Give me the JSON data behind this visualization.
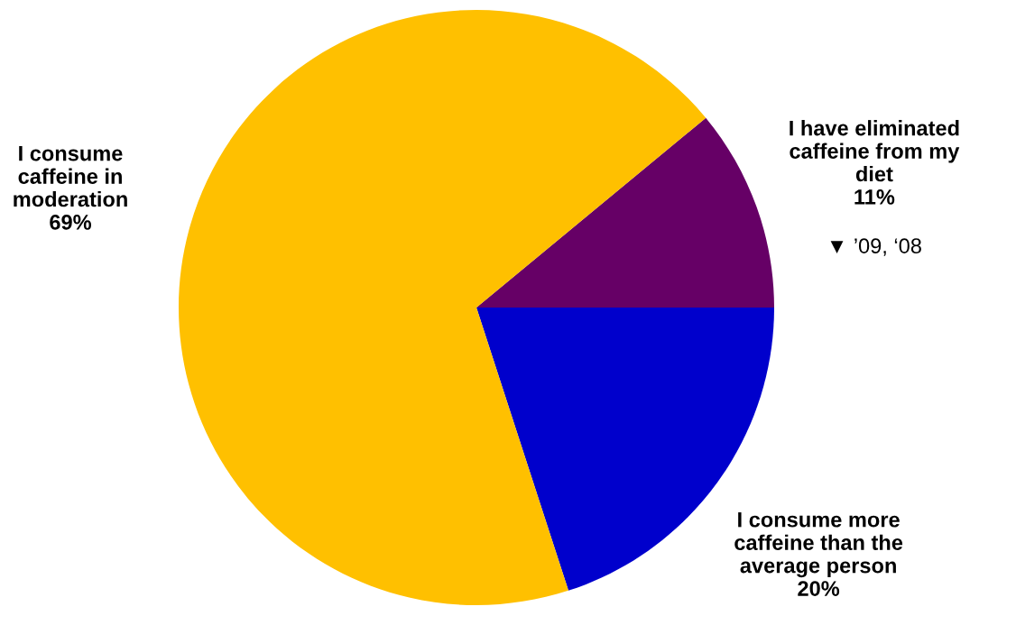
{
  "chart_data": {
    "type": "pie",
    "categories": [
      "I have eliminated\ncaffeine from my\ndiet",
      "I consume more\ncaffeine than the\naverage person",
      "I consume\ncaffeine in\nmoderation"
    ],
    "values": [
      11,
      20,
      69
    ],
    "colors": [
      "#660066",
      "#0000cc",
      "#ffc000"
    ],
    "value_labels": [
      "11%",
      "20%",
      "69%"
    ],
    "legend": false,
    "annotations": [
      "▼ ’09, ‘08"
    ]
  }
}
